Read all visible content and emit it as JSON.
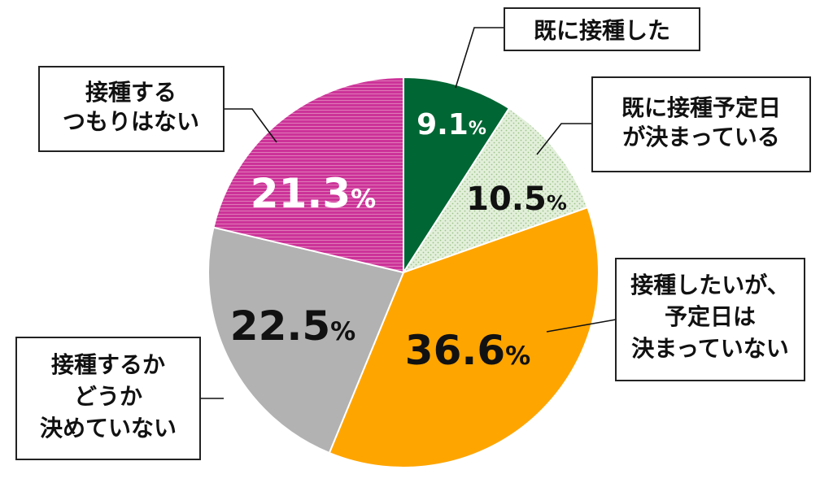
{
  "chart_data": {
    "type": "pie",
    "start_angle_deg": 0,
    "direction": "clockwise",
    "slices": [
      {
        "label": "既に接種した",
        "value": 9.1,
        "display_value": "9.1",
        "color": "#006633",
        "text_color": "#ffffff",
        "pattern": "solid"
      },
      {
        "label": "既に接種予定日が決まっている",
        "value": 10.5,
        "display_value": "10.5",
        "color": "#e2efda",
        "text_color": "#111111",
        "pattern": "dots"
      },
      {
        "label": "接種したいが、予定日は決まっていない",
        "value": 36.6,
        "display_value": "36.6",
        "color": "#ffa500",
        "text_color": "#111111",
        "pattern": "solid"
      },
      {
        "label": "接種するかどうか決めていない",
        "value": 22.5,
        "display_value": "22.5",
        "color": "#b2b2b2",
        "text_color": "#111111",
        "pattern": "solid"
      },
      {
        "label": "接種するつもりはない",
        "value": 21.3,
        "display_value": "21.3",
        "color": "#cc3399",
        "text_color": "#ffffff",
        "pattern": "stripes"
      }
    ],
    "value_suffix": "%",
    "legend": "callouts"
  },
  "callouts": [
    {
      "lines": [
        "既に接種した"
      ]
    },
    {
      "lines": [
        "既に接種予定日",
        "が決まっている"
      ]
    },
    {
      "lines": [
        "接種したいが、",
        "予定日は",
        "決まっていない"
      ]
    },
    {
      "lines": [
        "接種するか",
        "どうか",
        "決めていない"
      ]
    },
    {
      "lines": [
        "接種する",
        "つもりはない"
      ]
    }
  ]
}
